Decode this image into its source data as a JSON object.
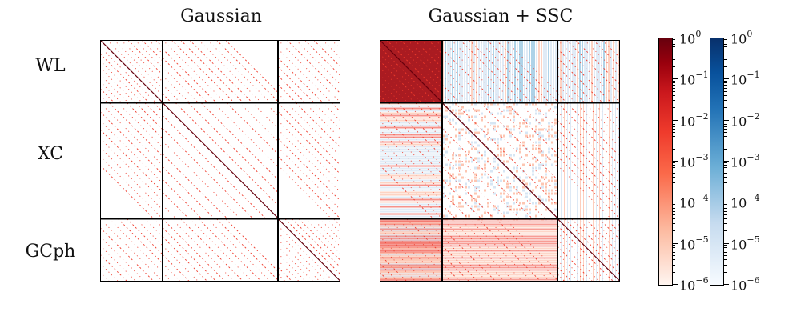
{
  "chart_data": {
    "type": "heatmap",
    "panels": [
      {
        "title": "Gaussian",
        "blocks": [
          "WL",
          "XC",
          "GCph"
        ],
        "block_fractions": [
          0.26,
          0.48,
          0.26
        ],
        "positive_cmap": "Reds",
        "negative_cmap": "Blues"
      },
      {
        "title": "Gaussian + SSC",
        "blocks": [
          "WL",
          "XC",
          "GCph"
        ],
        "block_fractions": [
          0.26,
          0.48,
          0.26
        ],
        "positive_cmap": "Reds",
        "negative_cmap": "Blues"
      }
    ],
    "row_labels": [
      "WL",
      "XC",
      "GCph"
    ],
    "colorbars": [
      {
        "name": "positive",
        "colormap": "Reds",
        "scale": "log",
        "range": [
          1e-06,
          1
        ],
        "tick_labels": [
          "10^0",
          "10^-1",
          "10^-2",
          "10^-3",
          "10^-4",
          "10^-5",
          "10^-6"
        ]
      },
      {
        "name": "negative",
        "colormap": "Blues",
        "scale": "log",
        "range": [
          1e-06,
          1
        ],
        "tick_labels": [
          "10^0",
          "10^-1",
          "10^-2",
          "10^-3",
          "10^-4",
          "10^-5",
          "10^-6"
        ]
      }
    ]
  },
  "colors": {
    "diag": "#67000d",
    "red_strong": "#a50f15",
    "red_mid": "#ef3b2c",
    "red_light": "#fcae91",
    "blue_mid": "#6baed6",
    "blue_light": "#c6dbef"
  },
  "ticks": {
    "base": "10",
    "exponents": [
      "0",
      "−1",
      "−2",
      "−3",
      "−4",
      "−5",
      "−6"
    ]
  }
}
